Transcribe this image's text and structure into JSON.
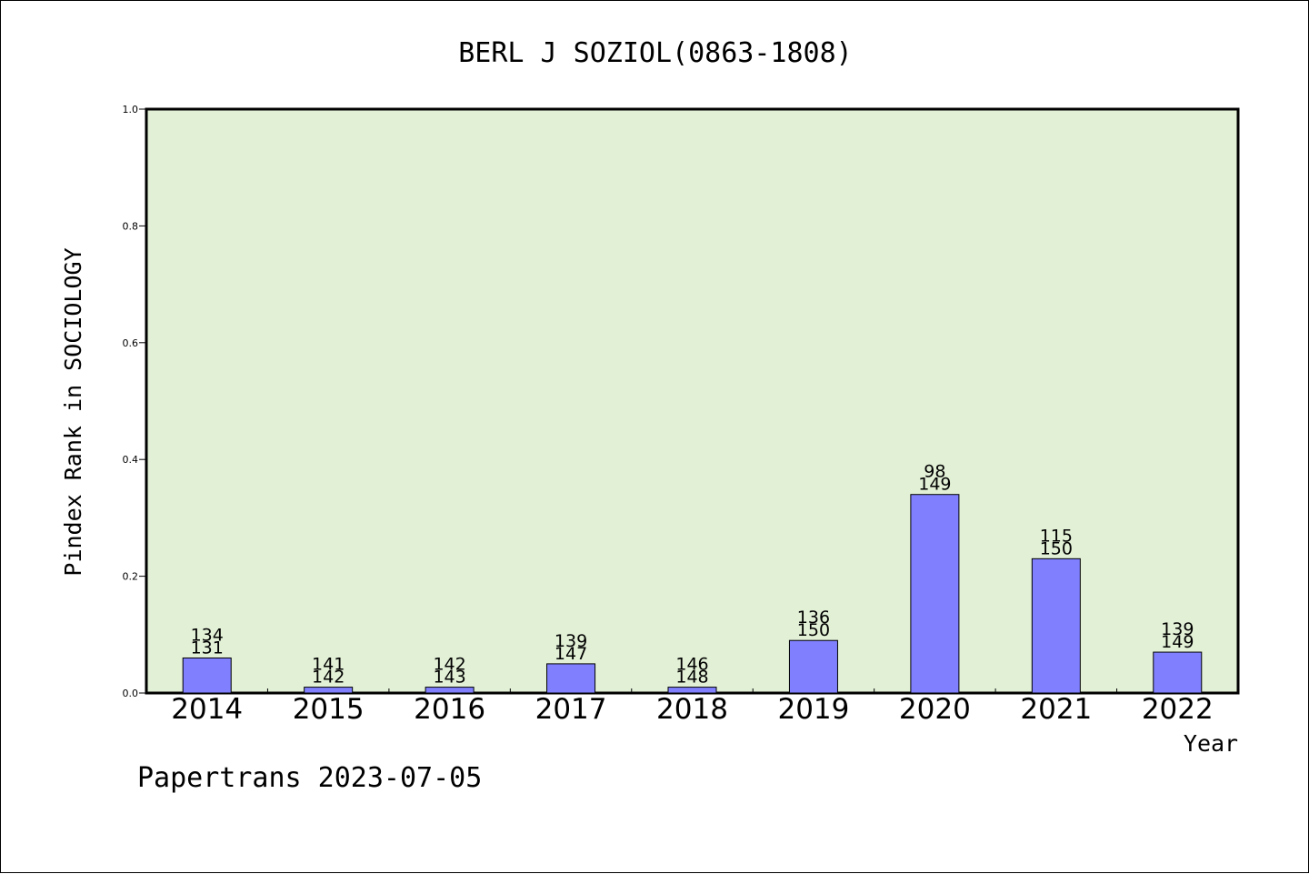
{
  "chart_data": {
    "type": "bar",
    "title": "BERL J SOZIOL(0863-1808)",
    "xlabel": "Year",
    "ylabel": "Pindex Rank in SOCIOLOGY",
    "ylim": [
      0,
      1.0
    ],
    "yticks": [
      "0.0",
      "0.2",
      "0.4",
      "0.6",
      "0.8",
      "1.0"
    ],
    "grid": false,
    "categories": [
      "2014",
      "2015",
      "2016",
      "2017",
      "2018",
      "2019",
      "2020",
      "2021",
      "2022"
    ],
    "values": [
      0.06,
      0.01,
      0.01,
      0.05,
      0.01,
      0.09,
      0.34,
      0.23,
      0.07
    ],
    "labels_top": [
      "134",
      "141",
      "142",
      "139",
      "146",
      "136",
      "98",
      "115",
      "139"
    ],
    "labels_bottom": [
      "131",
      "142",
      "143",
      "147",
      "148",
      "150",
      "149",
      "150",
      "149"
    ],
    "colors": {
      "plot_background": "#e2f0d6",
      "bar_fill": "#8080ff",
      "bar_stroke": "#000000"
    },
    "footer": "Papertrans 2023-07-05"
  }
}
